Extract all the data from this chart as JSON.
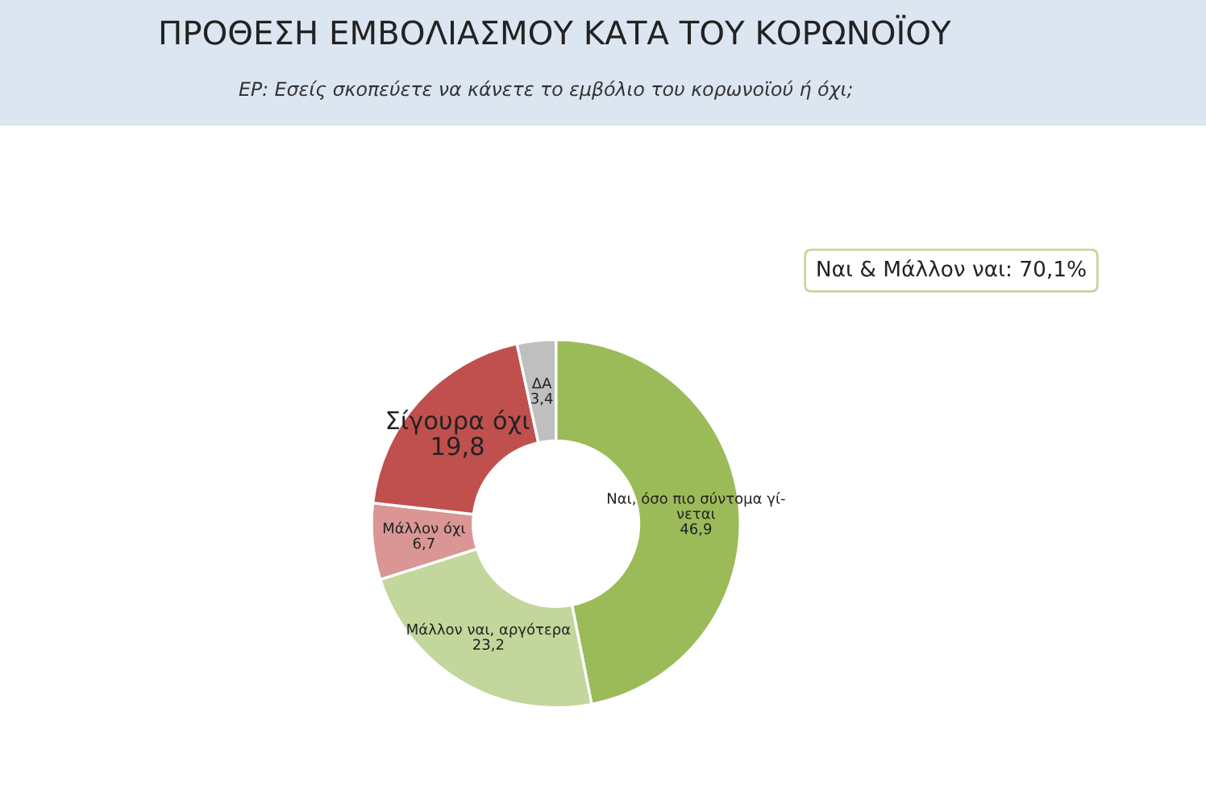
{
  "chart_data": {
    "type": "donut",
    "title": "ΠΡΟΘΕΣΗ ΕΜΒΟΛΙΑΣΜΟΥ ΚΑΤΑ ΤΟΥ ΚΟΡΩΝΟΪΟΥ",
    "subtitle": "ΕΡ: Εσείς σκοπεύετε να κάνετε το εμβόλιο του κορωνοϊού ή όχι;",
    "categories": [
      "Ναι, όσο πιο σύντομα γί-\nνεται",
      "Μάλλον ναι, αργότερα",
      "Μάλλον όχι",
      "Σίγουρα όχι",
      "ΔΑ"
    ],
    "values": [
      46.9,
      23.2,
      6.7,
      19.8,
      3.4
    ],
    "value_labels": [
      "46,9",
      "23,2",
      "6,7",
      "19,8",
      "3,4"
    ],
    "colors": [
      "#9bbb59",
      "#c3d69b",
      "#d99694",
      "#c0504d",
      "#bfbfbf"
    ],
    "annotations": [
      "Ναι & Μάλλον ναι: 70,1%"
    ]
  }
}
